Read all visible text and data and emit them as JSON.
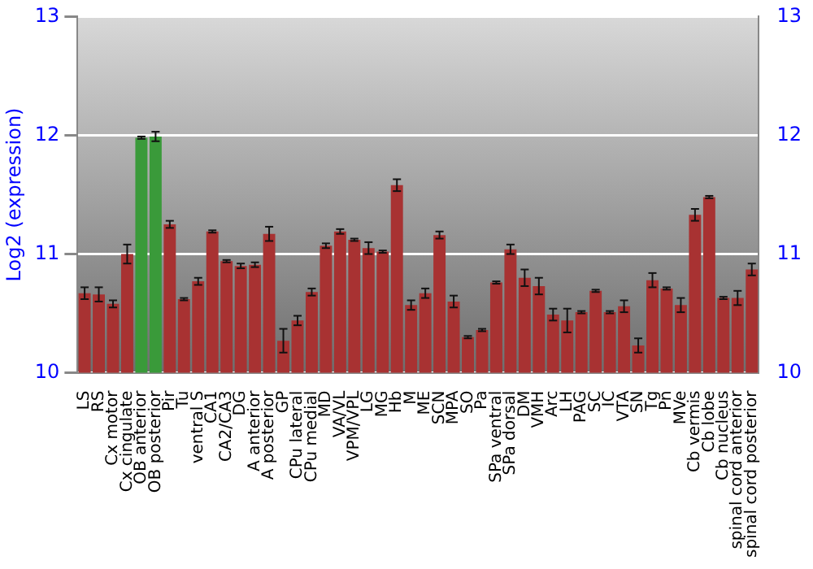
{
  "chart_data": {
    "type": "bar",
    "ylabel": "Log2 (expression)",
    "categories": [
      "LS",
      "RS",
      "Cx motor",
      "Cx cingulate",
      "OB anterior",
      "OB posterior",
      "Pir",
      "Tu",
      "ventral S",
      "CA1",
      "CA2/CA3",
      "DG",
      "A anterior",
      "A posterior",
      "GP",
      "CPu lateral",
      "CPu medial",
      "MD",
      "VA/VL",
      "VPM/VPL",
      "LG",
      "MG",
      "Hb",
      "M",
      "ME",
      "SCN",
      "MPA",
      "SO",
      "Pa",
      "SPa ventral",
      "SPa dorsal",
      "DM",
      "VMH",
      "Arc",
      "LH",
      "PAG",
      "SC",
      "IC",
      "VTA",
      "SN",
      "Tg",
      "Pn",
      "MVe",
      "Cb vermis",
      "Cb lobe",
      "Cb nucleus",
      "spinal cord anterior",
      "spinal cord posterior"
    ],
    "values": [
      10.67,
      10.66,
      10.58,
      11.0,
      11.98,
      11.99,
      11.25,
      10.62,
      10.77,
      11.19,
      10.94,
      10.9,
      10.91,
      11.17,
      10.27,
      10.44,
      10.68,
      11.07,
      11.19,
      11.12,
      11.05,
      11.02,
      11.58,
      10.57,
      10.67,
      11.16,
      10.6,
      10.3,
      10.36,
      10.76,
      11.04,
      10.8,
      10.73,
      10.49,
      10.44,
      10.51,
      10.69,
      10.51,
      10.56,
      10.23,
      10.78,
      10.71,
      10.57,
      11.33,
      11.48,
      10.63,
      10.63,
      10.87
    ],
    "errors": [
      0.05,
      0.06,
      0.03,
      0.08,
      0.01,
      0.04,
      0.03,
      0.01,
      0.03,
      0.01,
      0.01,
      0.02,
      0.02,
      0.06,
      0.1,
      0.04,
      0.03,
      0.02,
      0.02,
      0.01,
      0.05,
      0.01,
      0.05,
      0.04,
      0.04,
      0.03,
      0.05,
      0.01,
      0.01,
      0.01,
      0.04,
      0.07,
      0.07,
      0.05,
      0.1,
      0.01,
      0.01,
      0.01,
      0.05,
      0.06,
      0.06,
      0.01,
      0.06,
      0.05,
      0.01,
      0.01,
      0.06,
      0.05
    ],
    "colors": [
      "#a83232",
      "#a83232",
      "#a83232",
      "#a83232",
      "#3a9a3a",
      "#3a9a3a",
      "#a83232",
      "#a83232",
      "#a83232",
      "#a83232",
      "#a83232",
      "#a83232",
      "#a83232",
      "#a83232",
      "#a83232",
      "#a83232",
      "#a83232",
      "#a83232",
      "#a83232",
      "#a83232",
      "#a83232",
      "#a83232",
      "#a83232",
      "#a83232",
      "#a83232",
      "#a83232",
      "#a83232",
      "#a83232",
      "#a83232",
      "#a83232",
      "#a83232",
      "#a83232",
      "#a83232",
      "#a83232",
      "#a83232",
      "#a83232",
      "#a83232",
      "#a83232",
      "#a83232",
      "#a83232",
      "#a83232",
      "#a83232",
      "#a83232",
      "#a83232",
      "#a83232",
      "#a83232",
      "#a83232",
      "#a83232"
    ],
    "ylim": [
      10,
      13
    ],
    "yticks": [
      10,
      11,
      12,
      13
    ],
    "y2lim": [
      10,
      13
    ],
    "y2ticks": [
      10,
      11,
      12,
      13
    ],
    "grid": "y",
    "legend": false
  }
}
